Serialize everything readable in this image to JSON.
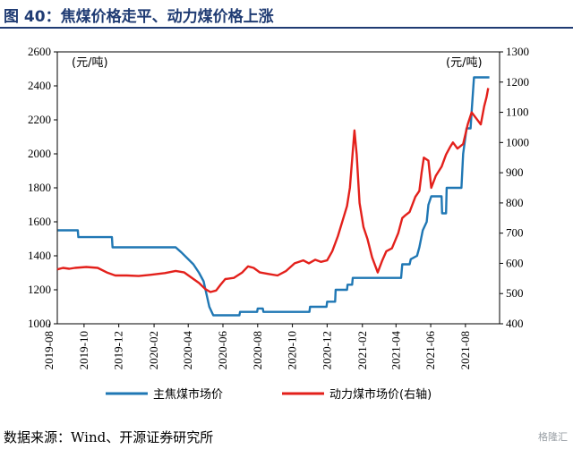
{
  "figure": {
    "title": "图 40：焦煤价格走平、动力煤价格上涨",
    "source": "数据来源：Wind、开源证券研究所",
    "watermark": "格隆汇"
  },
  "chart_data": {
    "type": "line",
    "x_type": "date",
    "x_range": [
      "2019-08-15",
      "2021-09-30"
    ],
    "x_tick_labels": [
      "2019-08",
      "2019-10",
      "2019-12",
      "2020-02",
      "2020-04",
      "2020-06",
      "2020-08",
      "2020-10",
      "2020-12",
      "2021-02",
      "2021-04",
      "2021-06",
      "2021-08"
    ],
    "left_axis": {
      "ylim": [
        1000,
        2600
      ],
      "ticks": [
        1000,
        1200,
        1400,
        1600,
        1800,
        2000,
        2200,
        2400,
        2600
      ],
      "unit_label": "(元/吨)"
    },
    "right_axis": {
      "ylim": [
        400,
        1300
      ],
      "ticks": [
        400,
        500,
        600,
        700,
        800,
        900,
        1000,
        1100,
        1200,
        1300
      ],
      "unit_label": "(元/吨)"
    },
    "legend_position": "bottom",
    "series": [
      {
        "name": "主焦煤市场价",
        "axis": "left",
        "color": "#1f77b4",
        "step": true,
        "points": [
          [
            "2019-08-16",
            1550
          ],
          [
            "2019-09-20",
            1550
          ],
          [
            "2019-09-21",
            1510
          ],
          [
            "2019-11-19",
            1510
          ],
          [
            "2019-11-20",
            1450
          ],
          [
            "2020-03-10",
            1450
          ],
          [
            "2020-03-20",
            1420
          ],
          [
            "2020-04-10",
            1350
          ],
          [
            "2020-04-20",
            1300
          ],
          [
            "2020-04-28",
            1250
          ],
          [
            "2020-05-08",
            1100
          ],
          [
            "2020-05-15",
            1050
          ],
          [
            "2020-06-30",
            1050
          ],
          [
            "2020-07-01",
            1070
          ],
          [
            "2020-07-31",
            1070
          ],
          [
            "2020-08-01",
            1090
          ],
          [
            "2020-08-10",
            1090
          ],
          [
            "2020-08-11",
            1070
          ],
          [
            "2020-10-31",
            1070
          ],
          [
            "2020-11-01",
            1100
          ],
          [
            "2020-11-30",
            1100
          ],
          [
            "2020-12-01",
            1130
          ],
          [
            "2020-12-15",
            1130
          ],
          [
            "2020-12-16",
            1200
          ],
          [
            "2021-01-05",
            1200
          ],
          [
            "2021-01-06",
            1230
          ],
          [
            "2021-01-14",
            1230
          ],
          [
            "2021-01-15",
            1270
          ],
          [
            "2021-04-10",
            1270
          ],
          [
            "2021-04-12",
            1350
          ],
          [
            "2021-04-25",
            1350
          ],
          [
            "2021-04-27",
            1380
          ],
          [
            "2021-05-08",
            1400
          ],
          [
            "2021-05-12",
            1450
          ],
          [
            "2021-05-18",
            1550
          ],
          [
            "2021-05-25",
            1600
          ],
          [
            "2021-05-28",
            1700
          ],
          [
            "2021-06-02",
            1750
          ],
          [
            "2021-06-20",
            1750
          ],
          [
            "2021-06-21",
            1650
          ],
          [
            "2021-06-28",
            1650
          ],
          [
            "2021-06-29",
            1800
          ],
          [
            "2021-07-25",
            1800
          ],
          [
            "2021-07-28",
            2000
          ],
          [
            "2021-08-03",
            2150
          ],
          [
            "2021-08-10",
            2150
          ],
          [
            "2021-08-12",
            2250
          ],
          [
            "2021-08-16",
            2450
          ],
          [
            "2021-09-12",
            2450
          ]
        ]
      },
      {
        "name": "动力煤市场价(右轴)",
        "axis": "right",
        "color": "#e3201b",
        "step": false,
        "points": [
          [
            "2019-08-15",
            580
          ],
          [
            "2019-08-25",
            585
          ],
          [
            "2019-09-05",
            582
          ],
          [
            "2019-09-15",
            585
          ],
          [
            "2019-10-05",
            588
          ],
          [
            "2019-10-25",
            585
          ],
          [
            "2019-11-10",
            570
          ],
          [
            "2019-11-25",
            560
          ],
          [
            "2019-12-15",
            560
          ],
          [
            "2020-01-05",
            558
          ],
          [
            "2020-01-25",
            562
          ],
          [
            "2020-02-20",
            568
          ],
          [
            "2020-03-10",
            575
          ],
          [
            "2020-03-25",
            570
          ],
          [
            "2020-04-05",
            555
          ],
          [
            "2020-04-20",
            535
          ],
          [
            "2020-05-01",
            515
          ],
          [
            "2020-05-10",
            505
          ],
          [
            "2020-05-20",
            510
          ],
          [
            "2020-05-28",
            530
          ],
          [
            "2020-06-05",
            548
          ],
          [
            "2020-06-20",
            552
          ],
          [
            "2020-07-05",
            570
          ],
          [
            "2020-07-15",
            590
          ],
          [
            "2020-07-25",
            585
          ],
          [
            "2020-08-05",
            570
          ],
          [
            "2020-08-20",
            565
          ],
          [
            "2020-09-05",
            560
          ],
          [
            "2020-09-20",
            575
          ],
          [
            "2020-10-05",
            600
          ],
          [
            "2020-10-20",
            610
          ],
          [
            "2020-10-30",
            600
          ],
          [
            "2020-11-10",
            612
          ],
          [
            "2020-11-20",
            605
          ],
          [
            "2020-12-01",
            610
          ],
          [
            "2020-12-10",
            640
          ],
          [
            "2020-12-20",
            690
          ],
          [
            "2020-12-28",
            740
          ],
          [
            "2021-01-05",
            790
          ],
          [
            "2021-01-10",
            850
          ],
          [
            "2021-01-15",
            970
          ],
          [
            "2021-01-18",
            1040
          ],
          [
            "2021-01-22",
            960
          ],
          [
            "2021-01-27",
            800
          ],
          [
            "2021-02-03",
            720
          ],
          [
            "2021-02-10",
            680
          ],
          [
            "2021-02-18",
            620
          ],
          [
            "2021-02-28",
            570
          ],
          [
            "2021-03-08",
            610
          ],
          [
            "2021-03-15",
            640
          ],
          [
            "2021-03-25",
            650
          ],
          [
            "2021-04-05",
            700
          ],
          [
            "2021-04-12",
            750
          ],
          [
            "2021-04-18",
            760
          ],
          [
            "2021-04-25",
            770
          ],
          [
            "2021-05-05",
            820
          ],
          [
            "2021-05-12",
            840
          ],
          [
            "2021-05-16",
            900
          ],
          [
            "2021-05-20",
            950
          ],
          [
            "2021-05-28",
            940
          ],
          [
            "2021-06-02",
            850
          ],
          [
            "2021-06-10",
            890
          ],
          [
            "2021-06-20",
            920
          ],
          [
            "2021-06-28",
            960
          ],
          [
            "2021-07-05",
            985
          ],
          [
            "2021-07-10",
            1000
          ],
          [
            "2021-07-18",
            980
          ],
          [
            "2021-07-28",
            995
          ],
          [
            "2021-08-05",
            1060
          ],
          [
            "2021-08-12",
            1100
          ],
          [
            "2021-08-20",
            1080
          ],
          [
            "2021-08-28",
            1060
          ],
          [
            "2021-09-03",
            1120
          ],
          [
            "2021-09-07",
            1150
          ],
          [
            "2021-09-10",
            1180
          ]
        ]
      }
    ]
  }
}
